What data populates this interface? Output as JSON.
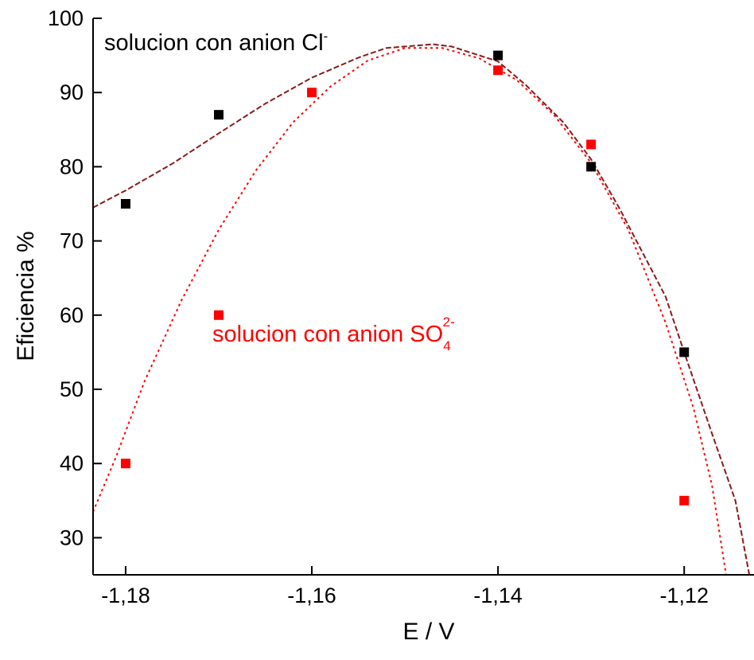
{
  "chart_data": {
    "type": "scatter",
    "title": "",
    "xlabel": "E / V",
    "ylabel": "Eficiencia %",
    "xlim": [
      -1.1835,
      -1.1125
    ],
    "ylim": [
      25,
      100
    ],
    "xticks": [
      -1.18,
      -1.16,
      -1.14,
      -1.12
    ],
    "xtick_labels": [
      "-1,18",
      "-1,16",
      "-1,14",
      "-1,12"
    ],
    "yticks": [
      30,
      40,
      50,
      60,
      70,
      80,
      90,
      100
    ],
    "ytick_labels": [
      "30",
      "40",
      "50",
      "60",
      "70",
      "80",
      "90",
      "100"
    ],
    "grid": false,
    "series": [
      {
        "color": "#000000",
        "marker": "square",
        "x": [
          -1.18,
          -1.17,
          -1.14,
          -1.13,
          -1.12
        ],
        "y": [
          75,
          87,
          95,
          80,
          55
        ],
        "fit_color": "#8b1a1a",
        "fit_style": "dashed",
        "fit_x": [
          -1.1835,
          -1.18,
          -1.175,
          -1.17,
          -1.165,
          -1.16,
          -1.155,
          -1.152,
          -1.147,
          -1.145,
          -1.14,
          -1.137,
          -1.133,
          -1.13,
          -1.127,
          -1.122,
          -1.12,
          -1.117,
          -1.1145,
          -1.113
        ],
        "fit_y": [
          74.5,
          76.8,
          80.4,
          84.5,
          88.5,
          92.0,
          94.7,
          96.0,
          96.5,
          96.2,
          94.2,
          91.0,
          86.0,
          81.0,
          74.5,
          62.5,
          55.0,
          44.0,
          35.0,
          25.0
        ]
      },
      {
        "color": "#ff0000",
        "marker": "square",
        "x": [
          -1.18,
          -1.17,
          -1.16,
          -1.14,
          -1.13,
          -1.12
        ],
        "y": [
          40,
          60,
          90,
          93,
          83,
          35
        ],
        "fit_color": "#ff0000",
        "fit_style": "dotted",
        "fit_x": [
          -1.1835,
          -1.181,
          -1.178,
          -1.174,
          -1.17,
          -1.166,
          -1.162,
          -1.158,
          -1.154,
          -1.15,
          -1.146,
          -1.142,
          -1.138,
          -1.134,
          -1.13,
          -1.126,
          -1.122,
          -1.119,
          -1.117,
          -1.1155
        ],
        "fit_y": [
          33.5,
          41.0,
          51.0,
          62.0,
          71.5,
          79.5,
          86.0,
          90.8,
          94.3,
          96.0,
          96.0,
          94.6,
          91.7,
          87.0,
          80.5,
          71.5,
          59.0,
          47.5,
          37.0,
          25.0
        ]
      }
    ],
    "annotations": [
      {
        "text": "solucion con anion Cl",
        "superscript": "-",
        "subscript": "",
        "color": "#000000"
      },
      {
        "text": "solucion con anion SO",
        "subscript": "4",
        "superscript": "2-",
        "color": "#ff0000"
      }
    ]
  }
}
